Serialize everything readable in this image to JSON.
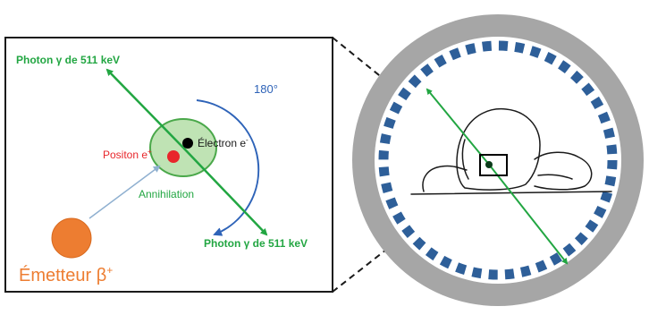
{
  "labels": {
    "photon_top": "Photon γ de 511 keV",
    "photon_bottom": "Photon γ de 511 keV",
    "angle": "180°",
    "electron": "Électron e",
    "electron_sup": "-",
    "positon": "Positon e",
    "positon_sup": "+",
    "annihilation": "Annihilation",
    "emitter": "Émetteur β",
    "emitter_sup": "+"
  },
  "colors": {
    "photon_green": "#22a642",
    "angle_blue": "#2e63b8",
    "positon_red": "#e8262b",
    "emitter_orange": "#ed7d31",
    "annihilation_fill": "#bfe3b4",
    "annihilation_stroke": "#4aa84a",
    "ring_gray": "#a6a6a6",
    "detector_blue": "#2e5f99",
    "black": "#000000"
  },
  "icons": {
    "electron": "black-dot",
    "positon": "red-dot",
    "emitter": "orange-circle",
    "patient": "patient-sketch",
    "scanner": "pet-detector-ring"
  }
}
